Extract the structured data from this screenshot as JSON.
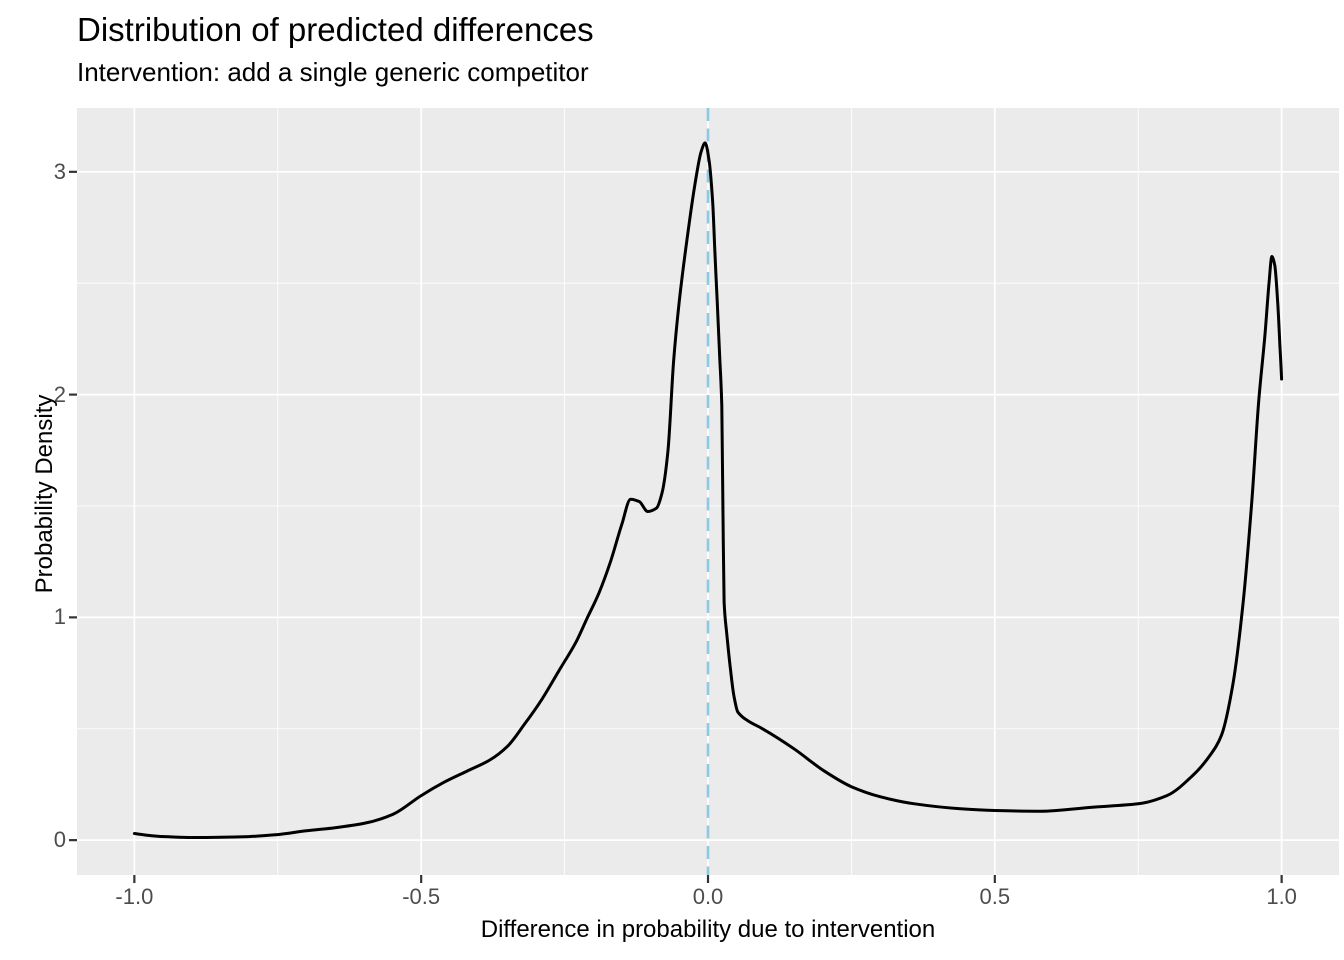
{
  "chart_data": {
    "type": "line",
    "subtype": "density",
    "title": "Distribution of predicted differences",
    "subtitle": "Intervention: add a single generic competitor",
    "xlabel": "Difference in probability due to intervention",
    "ylabel": "Probability Density",
    "xlim": [
      -1.1,
      1.1
    ],
    "ylim": [
      -0.1565,
      3.2865
    ],
    "grid": "white major and minor gridlines on grey panel",
    "legend": "none",
    "panel_bg": "#EBEBEB",
    "grid_color": "#FFFFFF",
    "tick_label_color": "#4D4D4D",
    "tick_mark_color": "#333333",
    "x_ticks": {
      "values": [
        -1.0,
        -0.5,
        0.0,
        0.5,
        1.0
      ],
      "labels": [
        "-1.0",
        "-0.5",
        "0.0",
        "0.5",
        "1.0"
      ]
    },
    "y_ticks": {
      "values": [
        0,
        1,
        2,
        3
      ],
      "labels": [
        "0",
        "1",
        "2",
        "3"
      ]
    },
    "x_minor_ticks": [
      -0.75,
      -0.25,
      0.25,
      0.75
    ],
    "y_minor_ticks": [
      0.5,
      1.5,
      2.5
    ],
    "reference_line": {
      "x": 0,
      "style": "dashed",
      "color": "#8CC9E2",
      "width": 2.6,
      "dash": [
        13,
        7.5
      ]
    },
    "series": [
      {
        "name": "density of predicted differences",
        "color": "#000000",
        "width": 3,
        "points": [
          [
            -1.0,
            0.03
          ],
          [
            -0.97,
            0.02
          ],
          [
            -0.94,
            0.015
          ],
          [
            -0.9,
            0.012
          ],
          [
            -0.85,
            0.013
          ],
          [
            -0.8,
            0.016
          ],
          [
            -0.75,
            0.025
          ],
          [
            -0.7,
            0.042
          ],
          [
            -0.65,
            0.056
          ],
          [
            -0.6,
            0.075
          ],
          [
            -0.55,
            0.115
          ],
          [
            -0.5,
            0.2
          ],
          [
            -0.46,
            0.26
          ],
          [
            -0.42,
            0.31
          ],
          [
            -0.38,
            0.36
          ],
          [
            -0.35,
            0.42
          ],
          [
            -0.32,
            0.52
          ],
          [
            -0.29,
            0.63
          ],
          [
            -0.26,
            0.76
          ],
          [
            -0.23,
            0.89
          ],
          [
            -0.21,
            1.0
          ],
          [
            -0.19,
            1.11
          ],
          [
            -0.17,
            1.25
          ],
          [
            -0.15,
            1.42
          ],
          [
            -0.135,
            1.53
          ],
          [
            -0.12,
            1.52
          ],
          [
            -0.105,
            1.475
          ],
          [
            -0.09,
            1.49
          ],
          [
            -0.08,
            1.56
          ],
          [
            -0.07,
            1.74
          ],
          [
            -0.06,
            2.15
          ],
          [
            -0.05,
            2.42
          ],
          [
            -0.037,
            2.69
          ],
          [
            -0.023,
            2.94
          ],
          [
            -0.012,
            3.09
          ],
          [
            -0.005,
            3.13
          ],
          [
            0.002,
            3.05
          ],
          [
            0.008,
            2.87
          ],
          [
            0.012,
            2.64
          ],
          [
            0.016,
            2.42
          ],
          [
            0.02,
            2.19
          ],
          [
            0.024,
            1.95
          ],
          [
            0.026,
            1.5
          ],
          [
            0.028,
            1.07
          ],
          [
            0.033,
            0.92
          ],
          [
            0.039,
            0.77
          ],
          [
            0.045,
            0.65
          ],
          [
            0.052,
            0.575
          ],
          [
            0.07,
            0.535
          ],
          [
            0.095,
            0.5
          ],
          [
            0.15,
            0.41
          ],
          [
            0.2,
            0.315
          ],
          [
            0.25,
            0.24
          ],
          [
            0.3,
            0.195
          ],
          [
            0.36,
            0.163
          ],
          [
            0.44,
            0.141
          ],
          [
            0.5,
            0.133
          ],
          [
            0.58,
            0.13
          ],
          [
            0.67,
            0.148
          ],
          [
            0.75,
            0.163
          ],
          [
            0.8,
            0.2
          ],
          [
            0.845,
            0.29
          ],
          [
            0.875,
            0.38
          ],
          [
            0.895,
            0.47
          ],
          [
            0.915,
            0.7
          ],
          [
            0.933,
            1.07
          ],
          [
            0.948,
            1.52
          ],
          [
            0.96,
            1.97
          ],
          [
            0.971,
            2.27
          ],
          [
            0.978,
            2.5
          ],
          [
            0.983,
            2.62
          ],
          [
            0.988,
            2.58
          ],
          [
            0.993,
            2.42
          ],
          [
            0.997,
            2.22
          ],
          [
            1.0,
            2.07
          ]
        ]
      }
    ]
  }
}
